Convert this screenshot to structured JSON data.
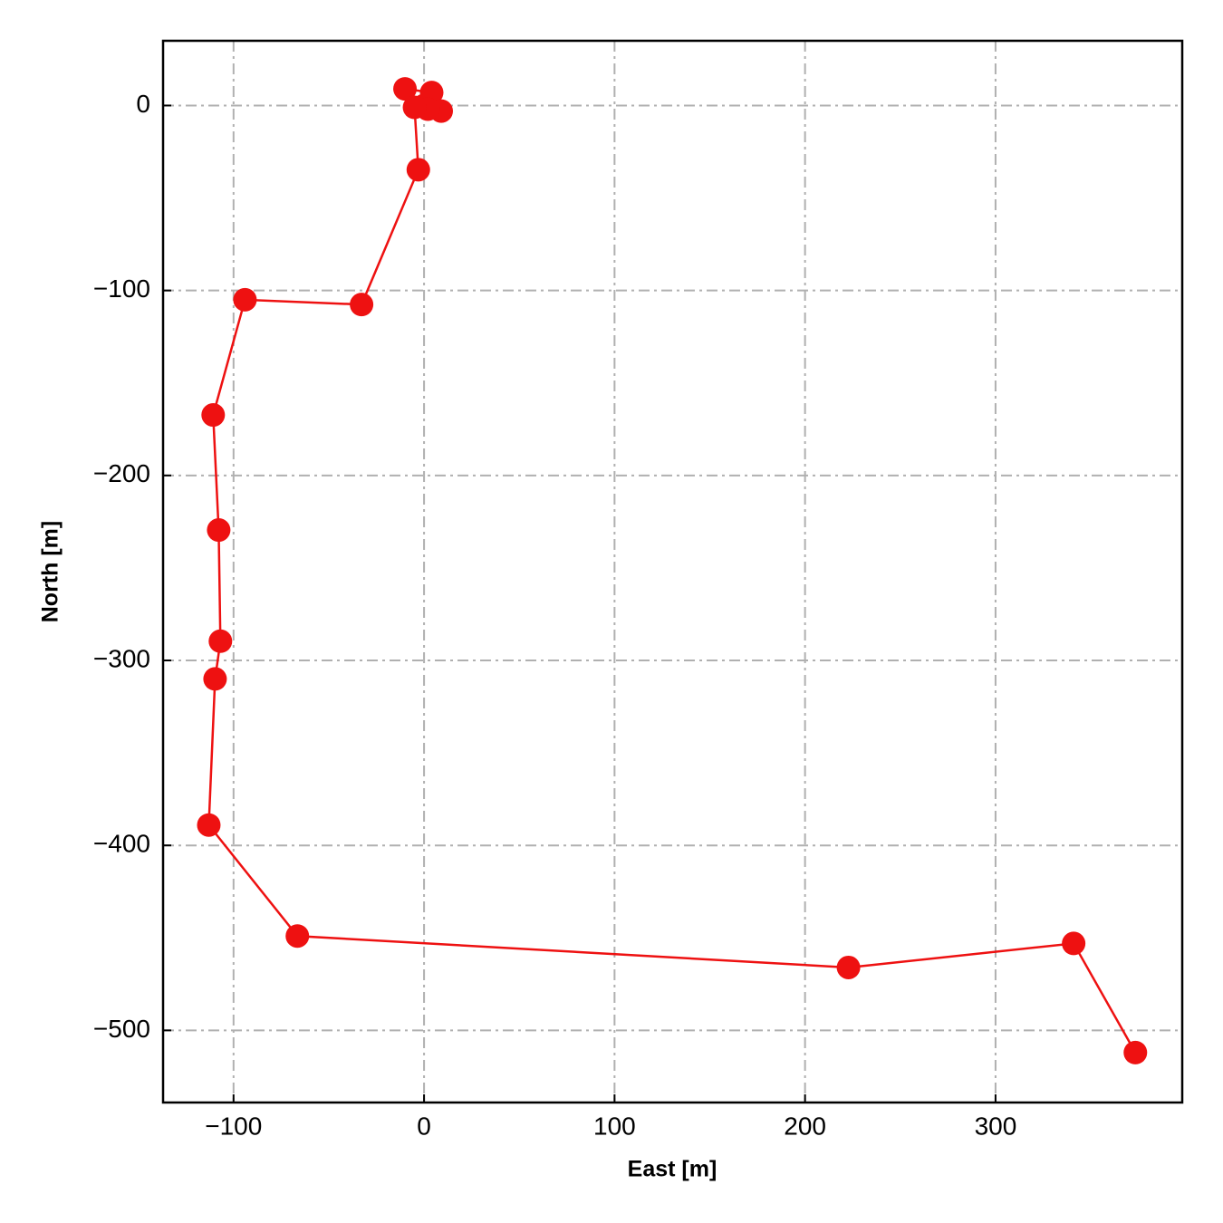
{
  "chart_data": {
    "type": "line",
    "x_label": "East [m]",
    "y_label": "North [m]",
    "x": [
      0,
      -10,
      4,
      9,
      2,
      -5,
      -3,
      -32.8,
      -94,
      -110.7,
      -107.8,
      -106.9,
      -109.7,
      -113,
      -66.5,
      222.8,
      341,
      373.4
    ],
    "values": [
      0,
      9,
      7,
      -3,
      -2,
      -1,
      -34.7,
      -107.6,
      -105,
      -167.3,
      -229.5,
      -289.6,
      -310,
      -389,
      -449,
      -466,
      -453,
      -512
    ],
    "color": "#ee1111",
    "xlim": [
      -137,
      398
    ],
    "xticks": [
      {
        "value": -100,
        "label": "−100"
      },
      0,
      100,
      200,
      300
    ],
    "ylim": [
      -539,
      35
    ],
    "yticks": [
      0,
      {
        "value": -100,
        "label": "−100"
      },
      {
        "value": -200,
        "label": "−200"
      },
      {
        "value": -300,
        "label": "−300"
      },
      {
        "value": -400,
        "label": "−400"
      },
      {
        "value": -500,
        "label": "−500"
      }
    ],
    "grid": true
  }
}
